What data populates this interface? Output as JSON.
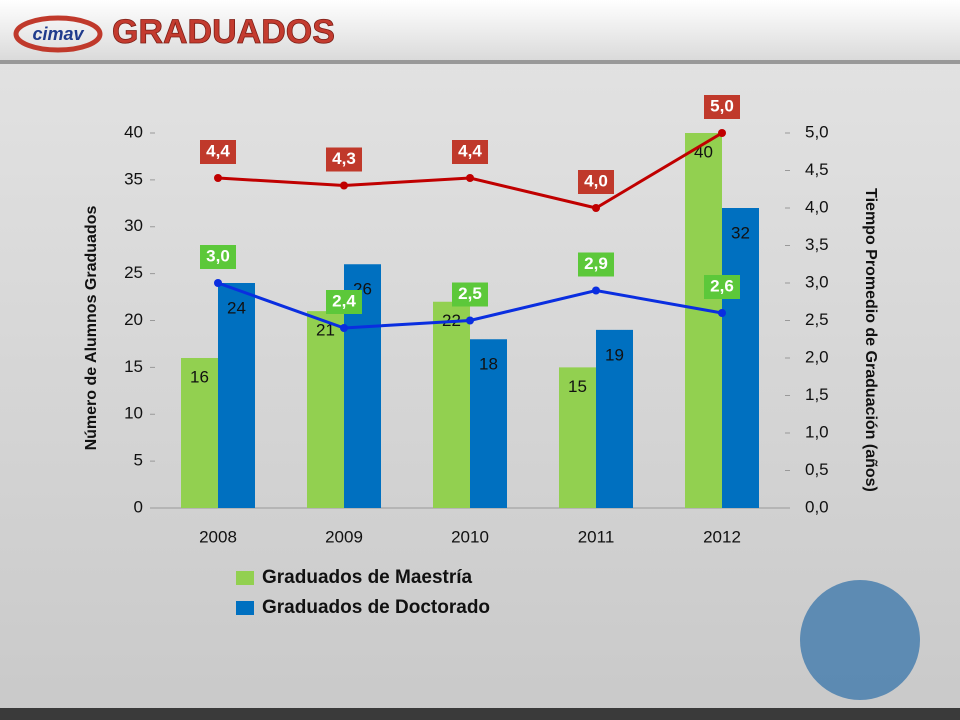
{
  "header": {
    "logo": "cimav"
  },
  "chart_data": {
    "type": "bar",
    "title": "GRADUADOS",
    "y_label": "Número de Alumnos Graduados",
    "y2_label": "Tiempo Promedio de Graduación (años)",
    "categories": [
      "2008",
      "2009",
      "2010",
      "2011",
      "2012"
    ],
    "series": [
      {
        "name": "Graduados de Maestría",
        "type": "bar",
        "color": "#92d050",
        "values": [
          16,
          21,
          22,
          15,
          40
        ]
      },
      {
        "name": "Graduados de Doctorado",
        "type": "bar",
        "color": "#0070c0",
        "values": [
          24,
          26,
          18,
          19,
          32
        ]
      },
      {
        "type": "line",
        "axis": "y2",
        "color": "#c00000",
        "label_color": "#c0392b",
        "values": [
          4.4,
          4.3,
          4.4,
          4.0,
          5.0
        ],
        "value_labels": [
          "4,4",
          "4,3",
          "4,4",
          "4,0",
          "5,0"
        ]
      },
      {
        "type": "line",
        "axis": "y2",
        "color": "#0a2ee0",
        "label_color": "#5cc83a",
        "values": [
          3.0,
          2.4,
          2.5,
          2.9,
          2.6
        ],
        "value_labels": [
          "3,0",
          "2,4",
          "2,5",
          "2,9",
          "2,6"
        ]
      }
    ],
    "ylim": [
      0,
      40
    ],
    "yticks": [
      0,
      5,
      10,
      15,
      20,
      25,
      30,
      35,
      40
    ],
    "y2lim": [
      0,
      5
    ],
    "y2ticks": [
      {
        "value": 0,
        "label": "0,0"
      },
      {
        "value": 0.5,
        "label": "0,5"
      },
      {
        "value": 1,
        "label": "1,0"
      },
      {
        "value": 1.5,
        "label": "1,5"
      },
      {
        "value": 2,
        "label": "2,0"
      },
      {
        "value": 2.5,
        "label": "2,5"
      },
      {
        "value": 3,
        "label": "3,0"
      },
      {
        "value": 3.5,
        "label": "3,5"
      },
      {
        "value": 4,
        "label": "4,0"
      },
      {
        "value": 4.5,
        "label": "4,5"
      },
      {
        "value": 5,
        "label": "5,0"
      }
    ],
    "legend": "bottom"
  }
}
